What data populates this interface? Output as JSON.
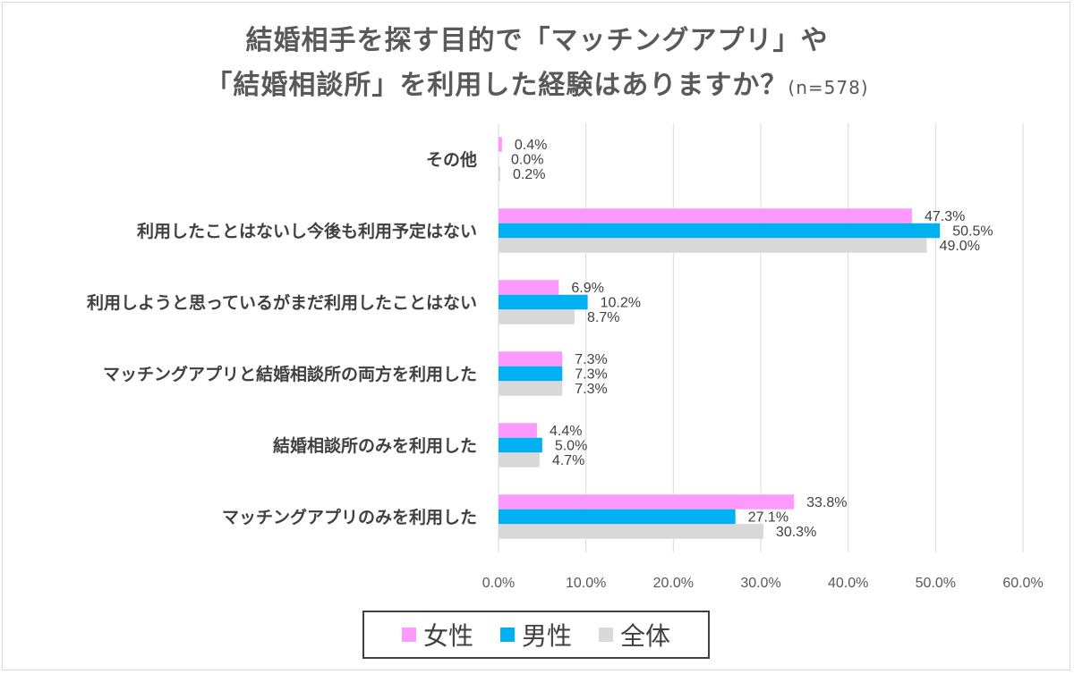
{
  "title": {
    "line1": "結婚相手を探す目的で「マッチングアプリ」や",
    "line2": "「結婚相談所」を利用した経験はありますか？",
    "n_label": "(n=578)"
  },
  "colors": {
    "female": "#ff99ff",
    "male": "#00b0f0",
    "total": "#d9d9d9",
    "grid": "#d9d9d9"
  },
  "legend": {
    "female": "女性",
    "male": "男性",
    "total": "全体"
  },
  "chart_data": {
    "type": "bar",
    "orientation": "horizontal",
    "categories": [
      "その他",
      "利用したことはないし今後も利用予定はない",
      "利用しようと思っているがまだ利用したことはない",
      "マッチングアプリと結婚相談所の両方を利用した",
      "結婚相談所のみを利用した",
      "マッチングアプリのみを利用した"
    ],
    "series": [
      {
        "name": "女性",
        "values": [
          0.4,
          47.3,
          6.9,
          7.3,
          4.4,
          33.8
        ],
        "labels": [
          "0.4%",
          "47.3%",
          "6.9%",
          "7.3%",
          "4.4%",
          "33.8%"
        ]
      },
      {
        "name": "男性",
        "values": [
          0.0,
          50.5,
          10.2,
          7.3,
          5.0,
          27.1
        ],
        "labels": [
          "0.0%",
          "50.5%",
          "10.2%",
          "7.3%",
          "5.0%",
          "27.1%"
        ]
      },
      {
        "name": "全体",
        "values": [
          0.2,
          49.0,
          8.7,
          7.3,
          4.7,
          30.3
        ],
        "labels": [
          "0.2%",
          "49.0%",
          "8.7%",
          "7.3%",
          "4.7%",
          "30.3%"
        ]
      }
    ],
    "xlim": [
      0,
      60
    ],
    "xticks": [
      "0.0%",
      "10.0%",
      "20.0%",
      "30.0%",
      "40.0%",
      "50.0%",
      "60.0%"
    ],
    "grid": true,
    "legend_position": "bottom"
  }
}
